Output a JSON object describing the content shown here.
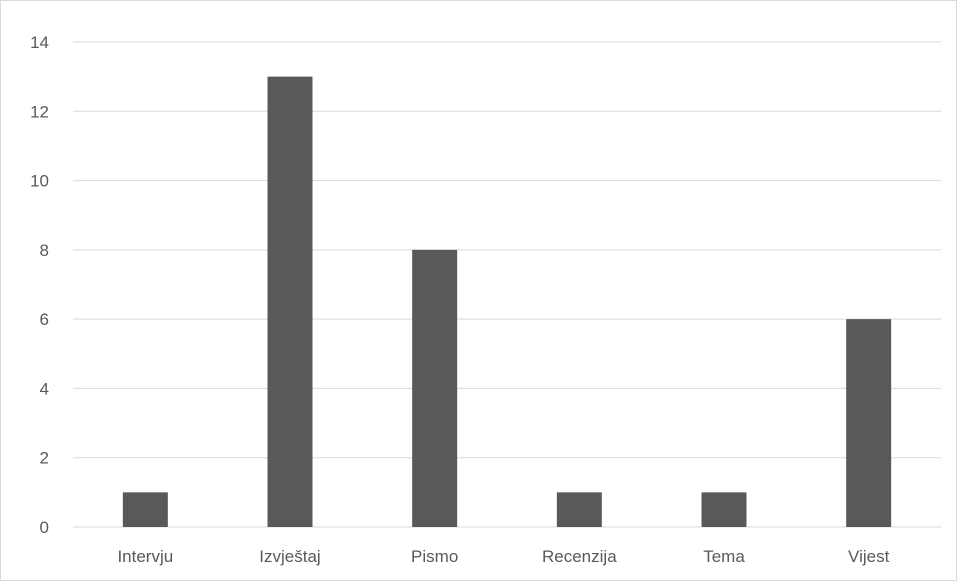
{
  "chart_data": {
    "type": "bar",
    "title": "",
    "xlabel": "",
    "ylabel": "",
    "categories": [
      "Intervju",
      "Izvještaj",
      "Pismo",
      "Recenzija",
      "Tema",
      "Vijest"
    ],
    "values": [
      1,
      13,
      8,
      1,
      1,
      6
    ],
    "ylim": [
      0,
      14
    ],
    "yticks": [
      "0",
      "2",
      "4",
      "6",
      "8",
      "10",
      "12",
      "14"
    ],
    "grid": true,
    "legend": "none",
    "colors": {
      "bar": "#595959",
      "grid": "#d9d9d9",
      "text": "#595959"
    }
  }
}
